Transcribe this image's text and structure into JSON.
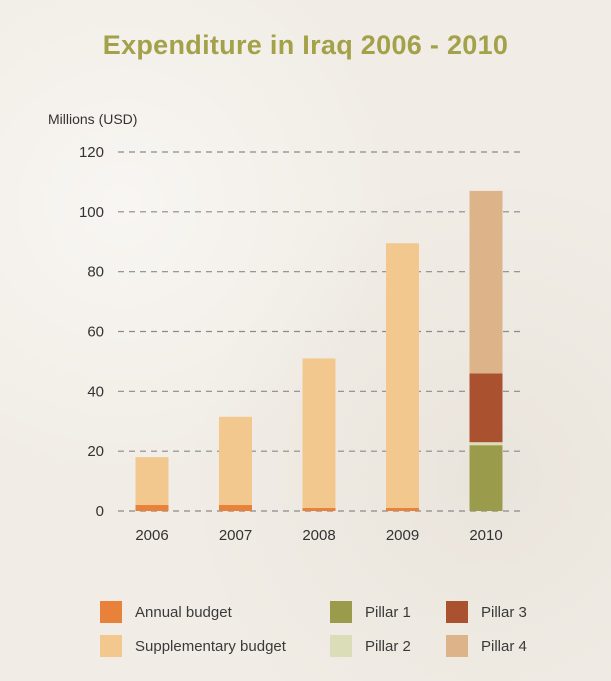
{
  "chart_data": {
    "type": "bar",
    "stacked": true,
    "title": "Expenditure in Iraq 2006 - 2010",
    "ylabel": "Millions (USD)",
    "xlabel": "",
    "ylim": [
      0,
      120
    ],
    "yticks": [
      0,
      20,
      40,
      60,
      80,
      100,
      120
    ],
    "grid": true,
    "categories": [
      "2006",
      "2007",
      "2008",
      "2009",
      "2010"
    ],
    "series": [
      {
        "name": "Annual budget",
        "color": "#e8823a",
        "values": [
          2,
          2,
          1,
          1,
          0
        ]
      },
      {
        "name": "Supplementary budget",
        "color": "#f2c88f",
        "values": [
          16,
          29.5,
          50,
          88.5,
          0
        ]
      },
      {
        "name": "Pillar 1",
        "color": "#9a9c4c",
        "values": [
          0,
          0,
          0,
          0,
          22
        ]
      },
      {
        "name": "Pillar 2",
        "color": "#dbdcb8",
        "values": [
          0,
          0,
          0,
          0,
          1
        ]
      },
      {
        "name": "Pillar 3",
        "color": "#aa5130",
        "values": [
          0,
          0,
          0,
          0,
          23
        ]
      },
      {
        "name": "Pillar 4",
        "color": "#ddb38a",
        "values": [
          0,
          0,
          0,
          0,
          61
        ]
      }
    ],
    "legend_placement": "bottom"
  }
}
